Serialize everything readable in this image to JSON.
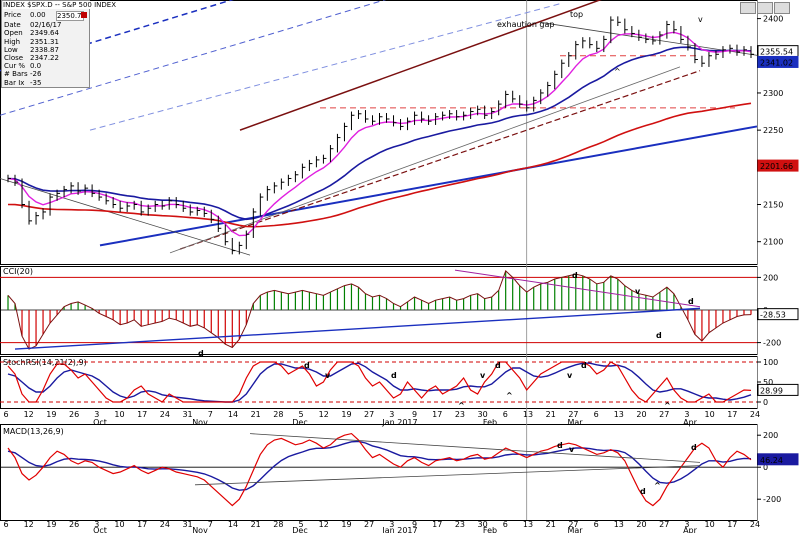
{
  "window": {
    "title": "INDEX $SPX.D -- S&P 500 INDEX"
  },
  "info_box": {
    "price_label": "Price",
    "price_value": "0.00",
    "price_last": "2350.74",
    "rows": [
      {
        "label": "Date",
        "value": "02/16/17"
      },
      {
        "label": "Open",
        "value": "2349.64"
      },
      {
        "label": "High",
        "value": "2351.31"
      },
      {
        "label": "Low",
        "value": "2338.87"
      },
      {
        "label": "Close",
        "value": "2347.22"
      },
      {
        "label": "Cur %",
        "value": "0.0"
      },
      {
        "label": "# Bars",
        "value": "-26"
      },
      {
        "label": "Bar Ix",
        "value": "-35"
      }
    ]
  },
  "colors": {
    "price_bars": "#000000",
    "ema_fast": "#e020e0",
    "ma_mid": "#1a1aa0",
    "ma_long": "#d01010",
    "trend_blue": "#1a2fbf",
    "trend_brown": "#7a1010",
    "annotation_red": "#e00000",
    "annotation_magenta": "#e020e0",
    "annotation_green": "#008000",
    "annotation_blue": "#1a2fbf",
    "cci_pos": "#008000",
    "cci_neg": "#d00000"
  },
  "chart_data": [
    {
      "type": "line",
      "name": "price-panel",
      "y_ticks": [
        2100,
        2150,
        2200,
        2250,
        2300,
        2350,
        2400
      ],
      "ylim": [
        2070,
        2425
      ],
      "axis_tags": [
        {
          "value": 2355.54,
          "text": "2355.54",
          "color": "#ffffff"
        },
        {
          "value": 2341.02,
          "text": "2341.02",
          "color": "#1a2fbf"
        },
        {
          "value": 2201.66,
          "text": "2201.66",
          "color": "#d01010"
        }
      ],
      "annotations": [
        {
          "text": "exhaution gap",
          "color": "#e00000"
        },
        {
          "text": "top",
          "color": "#e00000"
        },
        {
          "text": "v",
          "color": "#e020e0"
        },
        {
          "text": "^",
          "color": "#e020e0"
        }
      ],
      "close": [
        2185,
        2180,
        2150,
        2128,
        2135,
        2140,
        2160,
        2165,
        2170,
        2175,
        2168,
        2172,
        2165,
        2160,
        2155,
        2150,
        2145,
        2148,
        2150,
        2140,
        2145,
        2150,
        2148,
        2155,
        2150,
        2145,
        2140,
        2142,
        2138,
        2130,
        2118,
        2100,
        2088,
        2095,
        2110,
        2140,
        2160,
        2170,
        2175,
        2180,
        2185,
        2190,
        2200,
        2205,
        2210,
        2212,
        2225,
        2240,
        2255,
        2270,
        2272,
        2265,
        2262,
        2268,
        2265,
        2260,
        2255,
        2262,
        2270,
        2265,
        2262,
        2268,
        2270,
        2272,
        2268,
        2270,
        2275,
        2278,
        2270,
        2275,
        2285,
        2298,
        2292,
        2285,
        2280,
        2290,
        2300,
        2310,
        2325,
        2340,
        2350,
        2365,
        2370,
        2365,
        2360,
        2372,
        2398,
        2395,
        2385,
        2380,
        2375,
        2372,
        2370,
        2378,
        2392,
        2385,
        2372,
        2362,
        2345,
        2340,
        2350,
        2352,
        2358,
        2360,
        2355,
        2358,
        2352
      ]
    },
    {
      "type": "bar",
      "name": "CCI(20)",
      "title": "CCI(20)",
      "y_ticks": [
        200,
        0,
        -200
      ],
      "ylim": [
        -270,
        270
      ],
      "axis_tag": {
        "value": -28.53,
        "text": "-28.53"
      },
      "annotations": [
        {
          "text": "d",
          "color": "#008000"
        },
        {
          "text": "d",
          "color": "#e00000"
        },
        {
          "text": "v",
          "color": "#e00000"
        },
        {
          "text": "d",
          "color": "#e00000"
        },
        {
          "text": "d",
          "color": "#008000"
        }
      ],
      "values": [
        90,
        40,
        -160,
        -240,
        -220,
        -150,
        -80,
        -30,
        20,
        40,
        50,
        30,
        10,
        -20,
        -40,
        -60,
        -90,
        -80,
        -60,
        -100,
        -90,
        -80,
        -70,
        -50,
        -60,
        -80,
        -100,
        -90,
        -110,
        -140,
        -170,
        -210,
        -230,
        -180,
        -90,
        40,
        90,
        110,
        120,
        110,
        100,
        110,
        120,
        110,
        100,
        90,
        110,
        130,
        150,
        160,
        140,
        100,
        80,
        90,
        70,
        40,
        20,
        50,
        80,
        60,
        40,
        60,
        70,
        80,
        60,
        70,
        90,
        100,
        70,
        80,
        120,
        240,
        200,
        150,
        110,
        140,
        160,
        170,
        190,
        200,
        210,
        220,
        210,
        190,
        160,
        170,
        210,
        190,
        150,
        120,
        100,
        90,
        80,
        110,
        140,
        100,
        20,
        -60,
        -150,
        -190,
        -140,
        -110,
        -80,
        -60,
        -40,
        -30,
        -28.53
      ]
    },
    {
      "type": "line",
      "name": "StochRSI(14,21(2),9)",
      "title": "StochRSI(14,21(2),9)",
      "y_ticks": [
        100,
        50,
        0
      ],
      "ylim": [
        -15,
        115
      ],
      "axis_tag": {
        "value": 28.99,
        "text": "28.99"
      },
      "annotations": [
        {
          "text": "d",
          "color": "#e00000"
        },
        {
          "text": "v",
          "color": "#e00000"
        },
        {
          "text": "d",
          "color": "#e00000"
        },
        {
          "text": "v",
          "color": "#e00000"
        },
        {
          "text": "d",
          "color": "#e00000"
        },
        {
          "text": "v",
          "color": "#e00000"
        },
        {
          "text": "d",
          "color": "#e00000"
        },
        {
          "text": "^",
          "color": "#1a2fbf"
        },
        {
          "text": "^",
          "color": "#1a2fbf"
        },
        {
          "text": "^",
          "color": "#1a2fbf"
        }
      ],
      "series": [
        {
          "name": "StochRSI",
          "values": [
            90,
            70,
            20,
            0,
            0,
            30,
            70,
            95,
            95,
            80,
            60,
            70,
            50,
            30,
            10,
            0,
            0,
            10,
            30,
            40,
            20,
            10,
            0,
            20,
            10,
            0,
            0,
            0,
            0,
            0,
            0,
            0,
            0,
            20,
            60,
            90,
            100,
            100,
            100,
            90,
            70,
            80,
            90,
            70,
            40,
            50,
            80,
            100,
            100,
            100,
            90,
            60,
            40,
            50,
            30,
            10,
            20,
            50,
            30,
            10,
            30,
            40,
            20,
            30,
            40,
            60,
            30,
            20,
            50,
            70,
            100,
            100,
            80,
            60,
            30,
            50,
            70,
            80,
            90,
            100,
            100,
            100,
            100,
            90,
            70,
            80,
            100,
            90,
            60,
            30,
            10,
            0,
            20,
            40,
            60,
            30,
            10,
            0,
            0,
            10,
            20,
            0,
            0,
            10,
            20,
            30,
            28.99
          ]
        },
        {
          "name": "Signal",
          "values": [
            70,
            65,
            50,
            35,
            25,
            25,
            40,
            60,
            75,
            80,
            75,
            70,
            65,
            55,
            40,
            25,
            15,
            10,
            15,
            25,
            28,
            25,
            18,
            15,
            12,
            10,
            8,
            5,
            3,
            2,
            1,
            0,
            0,
            5,
            20,
            45,
            70,
            85,
            95,
            95,
            90,
            85,
            85,
            82,
            75,
            65,
            65,
            75,
            85,
            95,
            97,
            88,
            75,
            65,
            55,
            40,
            30,
            30,
            33,
            30,
            28,
            30,
            30,
            30,
            32,
            38,
            40,
            38,
            38,
            45,
            60,
            75,
            85,
            85,
            75,
            65,
            62,
            65,
            72,
            80,
            87,
            93,
            97,
            97,
            93,
            90,
            90,
            92,
            87,
            77,
            62,
            45,
            30,
            25,
            28,
            33,
            33,
            27,
            20,
            13,
            10,
            10,
            7,
            5,
            8,
            12,
            18
          ]
        }
      ]
    },
    {
      "type": "line",
      "name": "MACD(13,26,9)",
      "title": "MACD(13,26,9)",
      "y_ticks": [
        200,
        0,
        -200
      ],
      "ylim": [
        -330,
        270
      ],
      "axis_tag": {
        "value": 46.24,
        "text": "46.24"
      },
      "annotations": [
        {
          "text": "d",
          "color": "#e00000"
        },
        {
          "text": "v",
          "color": "#e00000"
        },
        {
          "text": "d",
          "color": "#e00000"
        },
        {
          "text": "d",
          "color": "#008000"
        },
        {
          "text": "^",
          "color": "#1a2fbf"
        }
      ],
      "series": [
        {
          "name": "MACD",
          "values": [
            120,
            60,
            -40,
            -80,
            -50,
            0,
            60,
            100,
            80,
            40,
            20,
            40,
            30,
            0,
            -20,
            -40,
            -30,
            -10,
            10,
            -20,
            -40,
            -20,
            0,
            -10,
            -30,
            -40,
            -50,
            -60,
            -80,
            -120,
            -160,
            -200,
            -240,
            -200,
            -120,
            -20,
            80,
            140,
            170,
            180,
            160,
            140,
            150,
            170,
            150,
            120,
            140,
            180,
            200,
            210,
            170,
            110,
            60,
            80,
            50,
            20,
            0,
            40,
            60,
            30,
            10,
            40,
            50,
            60,
            40,
            50,
            70,
            80,
            50,
            60,
            90,
            120,
            100,
            80,
            60,
            80,
            100,
            110,
            130,
            140,
            150,
            140,
            120,
            100,
            80,
            90,
            110,
            90,
            40,
            -50,
            -140,
            -210,
            -240,
            -200,
            -120,
            -60,
            0,
            60,
            120,
            150,
            120,
            40,
            0,
            60,
            100,
            80,
            46.24
          ]
        },
        {
          "name": "Signal",
          "values": [
            100,
            90,
            60,
            30,
            10,
            5,
            15,
            35,
            50,
            55,
            50,
            48,
            45,
            38,
            28,
            15,
            5,
            0,
            2,
            -3,
            -10,
            -12,
            -10,
            -10,
            -14,
            -19,
            -25,
            -32,
            -42,
            -58,
            -78,
            -102,
            -130,
            -144,
            -140,
            -116,
            -76,
            -33,
            8,
            42,
            66,
            81,
            95,
            110,
            118,
            118,
            122,
            133,
            147,
            159,
            161,
            151,
            133,
            122,
            108,
            90,
            72,
            66,
            65,
            58,
            48,
            47,
            48,
            51,
            49,
            50,
            54,
            59,
            58,
            58,
            65,
            76,
            81,
            81,
            77,
            77,
            82,
            87,
            96,
            105,
            114,
            120,
            120,
            116,
            109,
            105,
            106,
            103,
            91,
            62,
            21,
            -25,
            -68,
            -95,
            -100,
            -92,
            -73,
            -46,
            -13,
            20,
            40,
            40,
            32,
            37,
            49,
            55,
            53
          ]
        }
      ]
    }
  ],
  "x_axis": {
    "day_ticks": [
      "6",
      "12",
      "19",
      "26",
      "3",
      "10",
      "17",
      "24",
      "31",
      "7",
      "14",
      "21",
      "28",
      "5",
      "12",
      "19",
      "27",
      "3",
      "9",
      "17",
      "23",
      "30",
      "6",
      "13",
      "21",
      "27",
      "6",
      "13",
      "20",
      "27",
      "3",
      "10",
      "17",
      "24"
    ],
    "month_labels": [
      "Oct",
      "Nov",
      "Dec",
      "Jan 2017",
      "Feb",
      "Mar",
      "Apr"
    ]
  }
}
